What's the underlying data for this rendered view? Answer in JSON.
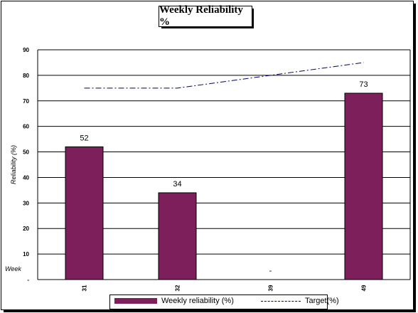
{
  "chart_data": {
    "type": "bar",
    "title": "Weekly Reliability %",
    "xlabel": "Week",
    "ylabel": "Reliability (%)",
    "ylim": [
      0,
      90
    ],
    "yticks": [
      "-",
      "10",
      "20",
      "30",
      "40",
      "50",
      "60",
      "70",
      "80",
      "90"
    ],
    "categories": [
      "31",
      "32",
      "39",
      "49"
    ],
    "series": [
      {
        "name": "Weekly reliability (%)",
        "type": "bar",
        "values": [
          52,
          34,
          0,
          73
        ],
        "labels": [
          "52",
          "34",
          "-",
          "73"
        ],
        "color": "#7d1f5a"
      },
      {
        "name": "Target(%)",
        "type": "line",
        "values": [
          75,
          75,
          80,
          85
        ],
        "color": "#00006a"
      }
    ],
    "grid": true,
    "legend": "bottom"
  }
}
